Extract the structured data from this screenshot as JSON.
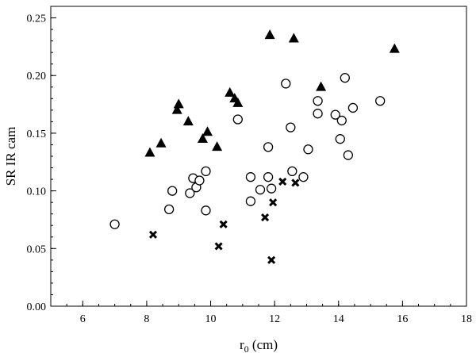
{
  "chart_data": {
    "type": "scatter",
    "title": "",
    "xlabel": "r",
    "xlabel_subscript": "0",
    "xlabel_unit": " (cm)",
    "ylabel": "SR IR cam",
    "xlim": [
      5,
      18
    ],
    "ylim": [
      0.0,
      0.26
    ],
    "x_ticks": [
      6,
      8,
      10,
      12,
      14,
      16,
      18
    ],
    "x_tick_labels": [
      "6",
      "8",
      "10",
      "12",
      "14",
      "16",
      "18"
    ],
    "x_minor_step": 0.5,
    "y_ticks": [
      0.0,
      0.05,
      0.1,
      0.15,
      0.2,
      0.25
    ],
    "y_tick_labels": [
      "0.00",
      "0.05",
      "0.10",
      "0.15",
      "0.20",
      "0.25"
    ],
    "y_minor_step": 0.01,
    "grid": false,
    "legend": "none",
    "series": [
      {
        "marker": "triangle",
        "color": "#000000",
        "points": [
          [
            8.1,
            0.133
          ],
          [
            8.45,
            0.141
          ],
          [
            8.95,
            0.17
          ],
          [
            9.0,
            0.175
          ],
          [
            9.3,
            0.16
          ],
          [
            9.75,
            0.145
          ],
          [
            9.9,
            0.151
          ],
          [
            10.2,
            0.138
          ],
          [
            10.6,
            0.185
          ],
          [
            10.75,
            0.18
          ],
          [
            10.85,
            0.176
          ],
          [
            11.85,
            0.235
          ],
          [
            12.6,
            0.232
          ],
          [
            13.45,
            0.19
          ],
          [
            15.75,
            0.223
          ]
        ]
      },
      {
        "marker": "circle",
        "color": "#000000",
        "points": [
          [
            7.0,
            0.071
          ],
          [
            8.7,
            0.084
          ],
          [
            8.8,
            0.1
          ],
          [
            9.35,
            0.098
          ],
          [
            9.45,
            0.111
          ],
          [
            9.55,
            0.103
          ],
          [
            9.65,
            0.109
          ],
          [
            9.85,
            0.117
          ],
          [
            9.85,
            0.083
          ],
          [
            10.85,
            0.162
          ],
          [
            11.25,
            0.112
          ],
          [
            11.25,
            0.091
          ],
          [
            11.55,
            0.101
          ],
          [
            11.8,
            0.138
          ],
          [
            11.8,
            0.112
          ],
          [
            11.9,
            0.102
          ],
          [
            12.35,
            0.193
          ],
          [
            12.5,
            0.155
          ],
          [
            12.55,
            0.117
          ],
          [
            12.9,
            0.112
          ],
          [
            13.05,
            0.136
          ],
          [
            13.35,
            0.178
          ],
          [
            13.35,
            0.167
          ],
          [
            13.9,
            0.166
          ],
          [
            14.05,
            0.145
          ],
          [
            14.1,
            0.161
          ],
          [
            14.2,
            0.198
          ],
          [
            14.3,
            0.131
          ],
          [
            14.45,
            0.172
          ],
          [
            15.3,
            0.178
          ]
        ]
      },
      {
        "marker": "x",
        "color": "#000000",
        "points": [
          [
            8.2,
            0.062
          ],
          [
            10.25,
            0.052
          ],
          [
            10.4,
            0.071
          ],
          [
            11.7,
            0.077
          ],
          [
            11.9,
            0.04
          ],
          [
            11.95,
            0.09
          ],
          [
            12.25,
            0.108
          ],
          [
            12.65,
            0.107
          ]
        ]
      }
    ]
  }
}
